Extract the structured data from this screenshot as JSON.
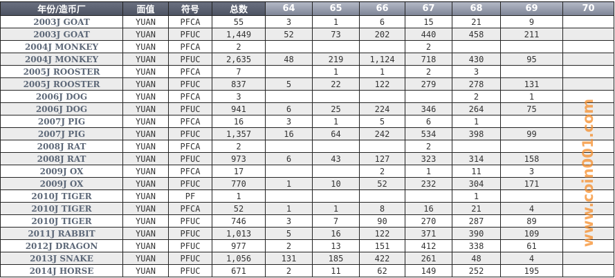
{
  "headers": [
    "年份/造币厂",
    "面值",
    "符号",
    "总数",
    "64",
    "65",
    "66",
    "67",
    "68",
    "69",
    "70"
  ],
  "rows": [
    [
      "2003J GOAT",
      "YUAN",
      "PFCA",
      "55",
      "3",
      "1",
      "6",
      "15",
      "21",
      "9",
      ""
    ],
    [
      "2003J GOAT",
      "YUAN",
      "PFUC",
      "1,449",
      "52",
      "73",
      "202",
      "440",
      "458",
      "211",
      ""
    ],
    [
      "2004J MONKEY",
      "YUAN",
      "PFCA",
      "2",
      "",
      "",
      "",
      "2",
      "",
      "",
      ""
    ],
    [
      "2004J MONKEY",
      "YUAN",
      "PFUC",
      "2,635",
      "48",
      "219",
      "1,124",
      "718",
      "430",
      "95",
      ""
    ],
    [
      "2005J ROOSTER",
      "YUAN",
      "PFCA",
      "7",
      "",
      "1",
      "1",
      "2",
      "3",
      "",
      ""
    ],
    [
      "2005J ROOSTER",
      "YUAN",
      "PFUC",
      "837",
      "5",
      "22",
      "122",
      "279",
      "278",
      "131",
      ""
    ],
    [
      "2006J DOG",
      "YUAN",
      "PFCA",
      "3",
      "",
      "",
      "",
      "",
      "2",
      "1",
      ""
    ],
    [
      "2006J DOG",
      "YUAN",
      "PFUC",
      "941",
      "6",
      "25",
      "224",
      "346",
      "264",
      "75",
      ""
    ],
    [
      "2007J PIG",
      "YUAN",
      "PFCA",
      "16",
      "3",
      "1",
      "5",
      "6",
      "1",
      "",
      ""
    ],
    [
      "2007J PIG",
      "YUAN",
      "PFUC",
      "1,357",
      "16",
      "64",
      "242",
      "534",
      "398",
      "99",
      ""
    ],
    [
      "2008J RAT",
      "YUAN",
      "PFCA",
      "2",
      "",
      "",
      "",
      "2",
      "",
      "",
      ""
    ],
    [
      "2008J RAT",
      "YUAN",
      "PFUC",
      "973",
      "6",
      "43",
      "127",
      "323",
      "314",
      "158",
      ""
    ],
    [
      "2009J OX",
      "YUAN",
      "PFCA",
      "17",
      "",
      "",
      "2",
      "1",
      "11",
      "3",
      ""
    ],
    [
      "2009J OX",
      "YUAN",
      "PFUC",
      "770",
      "1",
      "10",
      "52",
      "232",
      "304",
      "171",
      ""
    ],
    [
      "2010J TIGER",
      "YUAN",
      "PF",
      "1",
      "",
      "",
      "",
      "",
      "1",
      "",
      ""
    ],
    [
      "2010J TIGER",
      "YUAN",
      "PFCA",
      "52",
      "1",
      "1",
      "8",
      "16",
      "21",
      "4",
      ""
    ],
    [
      "2010J TIGER",
      "YUAN",
      "PFUC",
      "746",
      "3",
      "7",
      "90",
      "270",
      "287",
      "89",
      ""
    ],
    [
      "2011J RABBIT",
      "YUAN",
      "PFUC",
      "1,013",
      "5",
      "16",
      "122",
      "371",
      "390",
      "109",
      ""
    ],
    [
      "2012J DRAGON",
      "YUAN",
      "PFUC",
      "977",
      "2",
      "13",
      "151",
      "412",
      "338",
      "61",
      ""
    ],
    [
      "2013J SNAKE",
      "YUAN",
      "PFUC",
      "1,056",
      "131",
      "185",
      "422",
      "261",
      "48",
      "4",
      ""
    ],
    [
      "2014J HORSE",
      "YUAN",
      "PFUC",
      "671",
      "2",
      "11",
      "62",
      "149",
      "252",
      "195",
      ""
    ]
  ],
  "watermark": "www.coin001.com"
}
